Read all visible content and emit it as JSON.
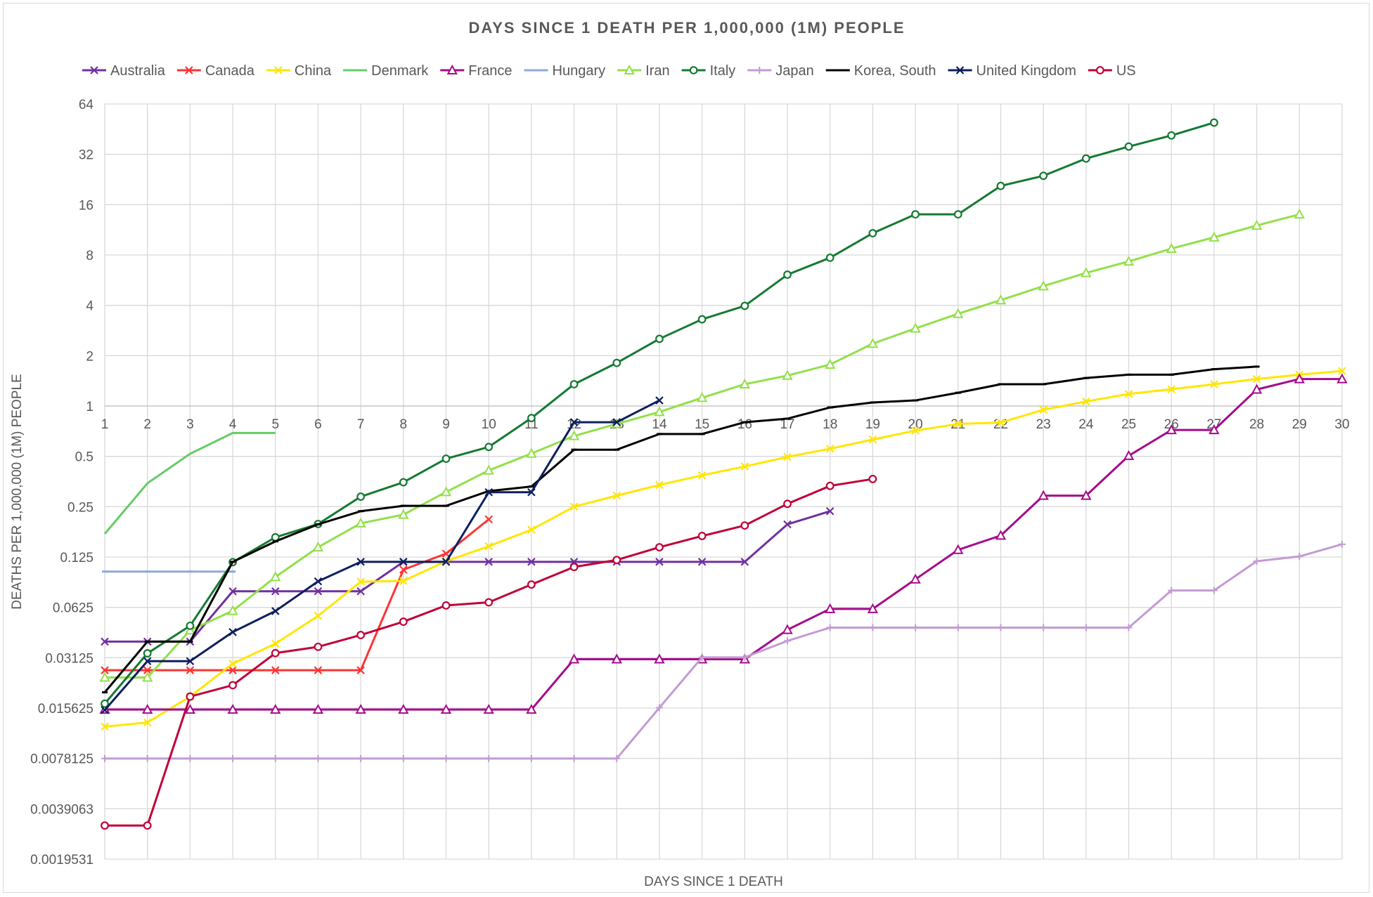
{
  "chart_data": {
    "type": "line",
    "title": "DAYS SINCE 1 DEATH PER 1,000,000 (1M) PEOPLE",
    "xlabel": "DAYS SINCE 1 DEATH",
    "ylabel": "DEATHS PER 1,000,000 (1M) PEOPLE",
    "y_scale": "log2",
    "ylim": [
      0.0019531,
      64
    ],
    "xlim": [
      1,
      30
    ],
    "grid": true,
    "legend_position": "top",
    "x_ticks": [
      "1",
      "2",
      "3",
      "4",
      "5",
      "6",
      "7",
      "8",
      "9",
      "10",
      "11",
      "12",
      "13",
      "14",
      "15",
      "16",
      "17",
      "18",
      "19",
      "20",
      "21",
      "22",
      "23",
      "24",
      "25",
      "26",
      "27",
      "28",
      "29",
      "30"
    ],
    "y_ticks": [
      "64",
      "32",
      "16",
      "8",
      "4",
      "2",
      "1",
      "0.5",
      "0.25",
      "0.125",
      "0.0625",
      "0.03125",
      "0.015625",
      "0.0078125",
      "0.0039063",
      "0.0019531"
    ],
    "series": [
      {
        "name": "Australia",
        "color": "#7030a0",
        "marker": "x",
        "x": [
          1,
          2,
          3,
          4,
          5,
          6,
          7,
          8,
          9,
          10,
          11,
          12,
          13,
          14,
          15,
          16,
          17,
          18
        ],
        "values": [
          0.039,
          0.039,
          0.039,
          0.078,
          0.078,
          0.078,
          0.078,
          0.117,
          0.117,
          0.117,
          0.117,
          0.117,
          0.117,
          0.117,
          0.117,
          0.117,
          0.196,
          0.235
        ]
      },
      {
        "name": "Canada",
        "color": "#ff3333",
        "marker": "x",
        "x": [
          1,
          2,
          3,
          4,
          5,
          6,
          7,
          8,
          9,
          10
        ],
        "values": [
          0.0263,
          0.0263,
          0.0263,
          0.0263,
          0.0263,
          0.0263,
          0.0263,
          0.105,
          0.131,
          0.21
        ]
      },
      {
        "name": "China",
        "color": "#ffe600",
        "marker": "x",
        "x": [
          1,
          2,
          3,
          4,
          5,
          6,
          7,
          8,
          9,
          10,
          11,
          12,
          13,
          14,
          15,
          16,
          17,
          18,
          19,
          20,
          21,
          22,
          23,
          24,
          25,
          26,
          27,
          28,
          29,
          30
        ],
        "values": [
          0.0121,
          0.0128,
          0.0183,
          0.0288,
          0.0379,
          0.0556,
          0.089,
          0.09,
          0.118,
          0.145,
          0.182,
          0.25,
          0.291,
          0.337,
          0.385,
          0.435,
          0.496,
          0.555,
          0.63,
          0.713,
          0.781,
          0.796,
          0.95,
          1.064,
          1.18,
          1.26,
          1.35,
          1.45,
          1.54,
          1.62
        ]
      },
      {
        "name": "Denmark",
        "color": "#66cc66",
        "marker": "none",
        "x": [
          1,
          2,
          3,
          4,
          5
        ],
        "values": [
          0.172,
          0.345,
          0.518,
          0.69,
          0.69
        ]
      },
      {
        "name": "France",
        "color": "#a50a8c",
        "marker": "triangle",
        "x": [
          1,
          2,
          3,
          4,
          5,
          6,
          7,
          8,
          9,
          10,
          11,
          12,
          13,
          14,
          15,
          16,
          17,
          18,
          19,
          20,
          21,
          22,
          23,
          24,
          25,
          26,
          27,
          28,
          29,
          30
        ],
        "values": [
          0.0153,
          0.0153,
          0.0153,
          0.0153,
          0.0153,
          0.0153,
          0.0153,
          0.0153,
          0.0153,
          0.0153,
          0.0153,
          0.0306,
          0.0306,
          0.0306,
          0.0306,
          0.0306,
          0.0459,
          0.0612,
          0.0612,
          0.092,
          0.138,
          0.168,
          0.291,
          0.291,
          0.504,
          0.719,
          0.719,
          1.255,
          1.45,
          1.45
        ]
      },
      {
        "name": "Hungary",
        "color": "#8ea9db",
        "marker": "dash",
        "x": [
          1,
          2,
          3,
          4
        ],
        "values": [
          0.1023,
          0.1023,
          0.1023,
          0.1023
        ]
      },
      {
        "name": "Iran",
        "color": "#92e04a",
        "marker": "triangle",
        "x": [
          1,
          2,
          3,
          4,
          5,
          6,
          7,
          8,
          9,
          10,
          11,
          12,
          13,
          14,
          15,
          16,
          17,
          18,
          19,
          20,
          21,
          22,
          23,
          24,
          25,
          26,
          27,
          28,
          29
        ],
        "values": [
          0.0238,
          0.0238,
          0.0456,
          0.0596,
          0.095,
          0.143,
          0.199,
          0.224,
          0.306,
          0.412,
          0.52,
          0.662,
          0.782,
          0.922,
          1.12,
          1.35,
          1.52,
          1.77,
          2.36,
          2.91,
          3.56,
          4.3,
          5.21,
          6.25,
          7.32,
          8.73,
          10.2,
          12.0,
          14.0
        ]
      },
      {
        "name": "Italy",
        "color": "#147a32",
        "marker": "circle",
        "x": [
          1,
          2,
          3,
          4,
          5,
          6,
          7,
          8,
          9,
          10,
          11,
          12,
          13,
          14,
          15,
          16,
          17,
          18,
          19,
          20,
          21,
          22,
          23,
          24,
          25,
          26,
          27
        ],
        "values": [
          0.0166,
          0.0332,
          0.0485,
          0.1165,
          0.164,
          0.197,
          0.287,
          0.35,
          0.484,
          0.569,
          0.847,
          1.35,
          1.81,
          2.52,
          3.3,
          3.97,
          6.1,
          7.7,
          10.8,
          14.0,
          14.0,
          20.7,
          23.8,
          30.2,
          35.6,
          41.5,
          49.5
        ]
      },
      {
        "name": "Japan",
        "color": "#c39bd3",
        "marker": "plus",
        "x": [
          1,
          2,
          3,
          4,
          5,
          6,
          7,
          8,
          9,
          10,
          11,
          12,
          13,
          14,
          15,
          16,
          17,
          18,
          19,
          20,
          21,
          22,
          23,
          24,
          25,
          26,
          27,
          28,
          29,
          30
        ],
        "values": [
          0.0078,
          0.0078,
          0.0078,
          0.0078,
          0.0078,
          0.0078,
          0.0078,
          0.0078,
          0.0078,
          0.0078,
          0.0078,
          0.0078,
          0.0078,
          0.0157,
          0.0314,
          0.0314,
          0.0394,
          0.0473,
          0.0473,
          0.0473,
          0.0473,
          0.0473,
          0.0473,
          0.0473,
          0.0473,
          0.0789,
          0.0789,
          0.118,
          0.126,
          0.149
        ]
      },
      {
        "name": "Korea, South",
        "color": "#000000",
        "marker": "dash",
        "x": [
          1,
          2,
          3,
          4,
          5,
          6,
          7,
          8,
          9,
          10,
          11,
          12,
          13,
          14,
          15,
          16,
          17,
          18,
          19,
          20,
          21,
          22,
          23,
          24,
          25,
          26,
          27,
          28
        ],
        "values": [
          0.0194,
          0.039,
          0.039,
          0.117,
          0.155,
          0.196,
          0.235,
          0.253,
          0.253,
          0.31,
          0.33,
          0.548,
          0.548,
          0.68,
          0.68,
          0.8,
          0.84,
          0.98,
          1.05,
          1.08,
          1.2,
          1.35,
          1.35,
          1.47,
          1.54,
          1.54,
          1.66,
          1.72
        ]
      },
      {
        "name": "United Kingdom",
        "color": "#0d1f5c",
        "marker": "x",
        "x": [
          1,
          2,
          3,
          4,
          5,
          6,
          7,
          8,
          9,
          10,
          11,
          12,
          13,
          14
        ],
        "values": [
          0.0152,
          0.0298,
          0.0298,
          0.0445,
          0.0594,
          0.0894,
          0.117,
          0.117,
          0.117,
          0.305,
          0.305,
          0.8,
          0.8,
          1.08
        ]
      },
      {
        "name": "US",
        "color": "#c00037",
        "marker": "circle",
        "x": [
          1,
          2,
          3,
          4,
          5,
          6,
          7,
          8,
          9,
          10,
          11,
          12,
          13,
          14,
          15,
          16,
          17,
          18,
          19
        ],
        "values": [
          0.0031,
          0.0031,
          0.0183,
          0.0214,
          0.0333,
          0.0363,
          0.0427,
          0.0513,
          0.0642,
          0.067,
          0.0856,
          0.109,
          0.12,
          0.143,
          0.167,
          0.193,
          0.26,
          0.333,
          0.366
        ]
      }
    ]
  }
}
